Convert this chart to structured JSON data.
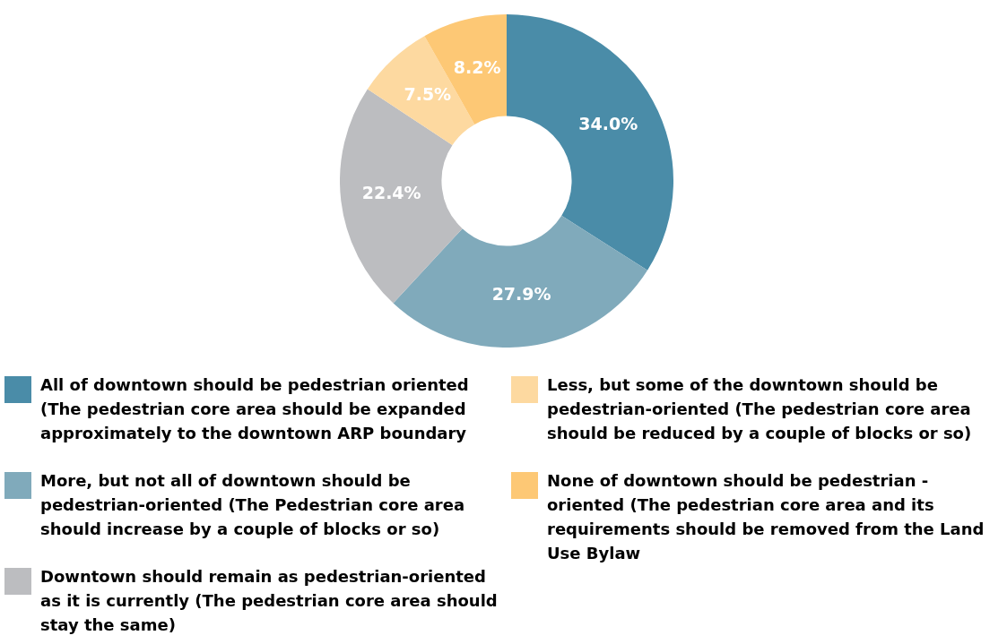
{
  "chart_data": {
    "type": "donut",
    "categories": [
      "All of downtown should be pedestrian oriented (The pedestrian core area should be expanded approximately to the downtown ARP boundary",
      "More, but not all of downtown should be pedestrian-oriented (The Pedestrian core area should increase by a couple of blocks or so)",
      "Downtown should remain as pedestrian-oriented as it is currently (The pedestrian core area should stay the same)",
      "Less, but some of the downtown should be pedestrian-oriented (The pedestrian core area should be reduced by a couple of blocks or so)",
      "None of downtown should be pedestrian -oriented (The pedestrian core area and its requirements should be removed from the Land Use Bylaw"
    ],
    "values": [
      34.0,
      27.9,
      22.4,
      7.5,
      8.2
    ],
    "value_labels": [
      "34.0%",
      "27.9%",
      "22.4%",
      "7.5%",
      "8.2%"
    ],
    "colors": [
      "#4a8ca8",
      "#80aabb",
      "#bcbdc0",
      "#fdd9a0",
      "#fdc875"
    ],
    "legend": "bottom"
  }
}
